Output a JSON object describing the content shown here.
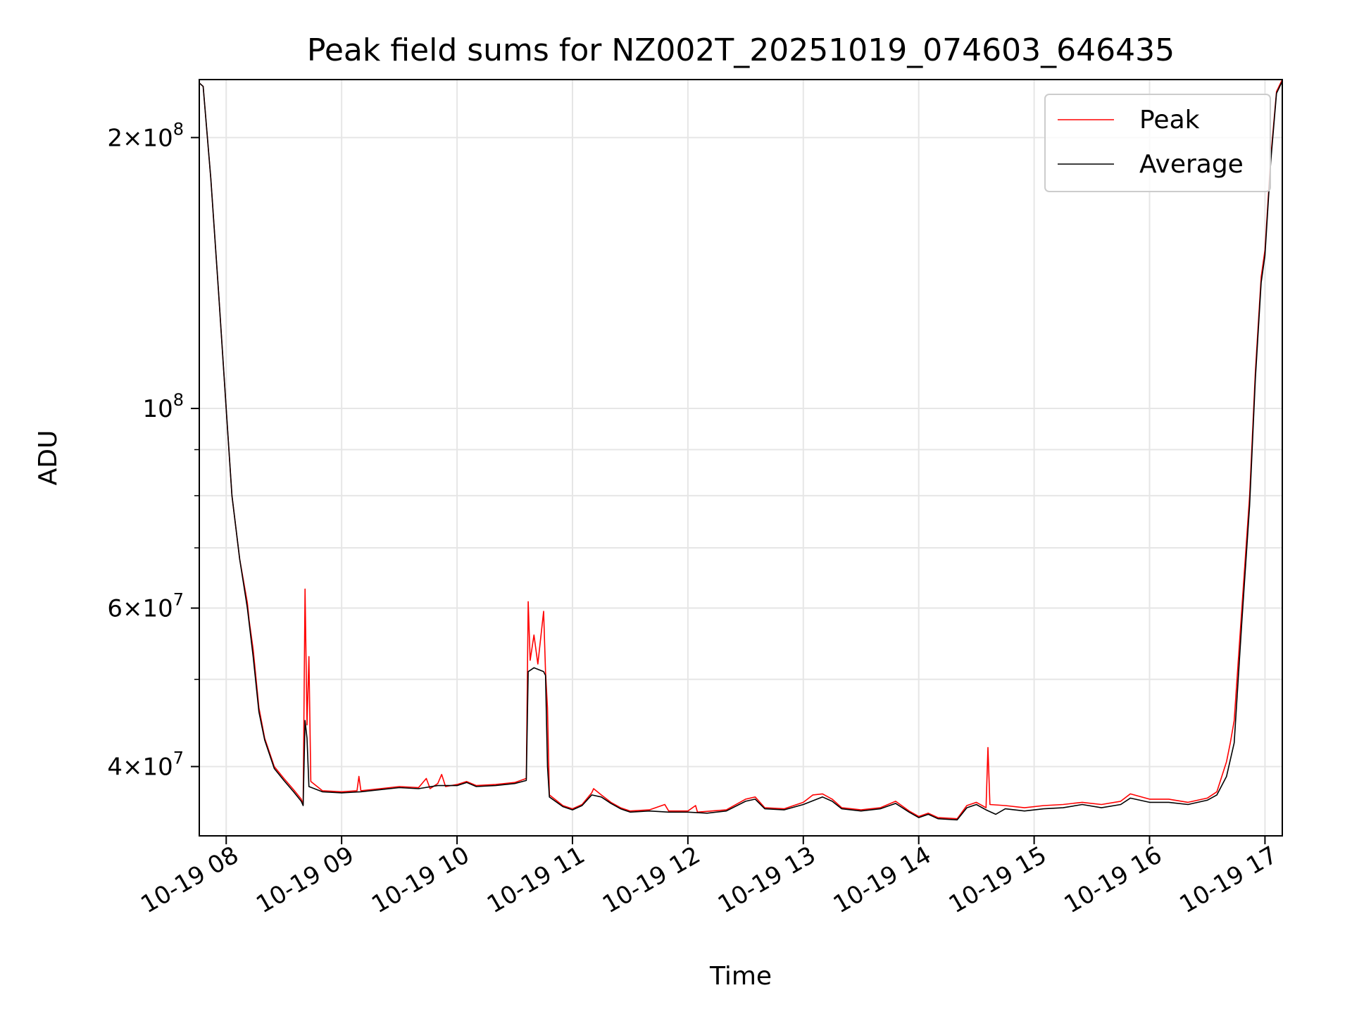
{
  "chart_data": {
    "type": "line",
    "title": "Peak field sums for NZ002T_20251019_074603_646435",
    "xlabel": "Time",
    "ylabel": "ADU",
    "yscale": "log",
    "xlim": [
      "2025-10-19 07:46",
      "2025-10-19 17:09"
    ],
    "ylim": [
      33500000,
      232000000
    ],
    "grid": true,
    "legend_position": "top-right",
    "x_ticks": [
      {
        "t": "2025-10-19 08:00",
        "label": "10-19 08"
      },
      {
        "t": "2025-10-19 09:00",
        "label": "10-19 09"
      },
      {
        "t": "2025-10-19 10:00",
        "label": "10-19 10"
      },
      {
        "t": "2025-10-19 11:00",
        "label": "10-19 11"
      },
      {
        "t": "2025-10-19 12:00",
        "label": "10-19 12"
      },
      {
        "t": "2025-10-19 13:00",
        "label": "10-19 13"
      },
      {
        "t": "2025-10-19 14:00",
        "label": "10-19 14"
      },
      {
        "t": "2025-10-19 15:00",
        "label": "10-19 15"
      },
      {
        "t": "2025-10-19 16:00",
        "label": "10-19 16"
      },
      {
        "t": "2025-10-19 17:00",
        "label": "10-19 17"
      }
    ],
    "y_major_ticks": [
      {
        "v": 40000000,
        "mant": "4",
        "exp": "7"
      },
      {
        "v": 60000000,
        "mant": "6",
        "exp": "7"
      },
      {
        "v": 100000000,
        "mant": "",
        "exp": "8"
      },
      {
        "v": 200000000,
        "mant": "2",
        "exp": "8"
      }
    ],
    "y_minor_ticks": [
      50000000,
      70000000,
      80000000,
      90000000
    ],
    "series": [
      {
        "name": "Peak",
        "color": "#ff0000",
        "points": [
          [
            "2025-10-19 07:46",
            230000000
          ],
          [
            "2025-10-19 07:48",
            228000000
          ],
          [
            "2025-10-19 07:52",
            180000000
          ],
          [
            "2025-10-19 07:56",
            135000000
          ],
          [
            "2025-10-19 08:00",
            100000000
          ],
          [
            "2025-10-19 08:03",
            80000000
          ],
          [
            "2025-10-19 08:07",
            68000000
          ],
          [
            "2025-10-19 08:11",
            60800000
          ],
          [
            "2025-10-19 08:12",
            58000000
          ],
          [
            "2025-10-19 08:14",
            54000000
          ],
          [
            "2025-10-19 08:17",
            46500000
          ],
          [
            "2025-10-19 08:20",
            43000000
          ],
          [
            "2025-10-19 08:25",
            40000000
          ],
          [
            "2025-10-19 08:30",
            38800000
          ],
          [
            "2025-10-19 08:35",
            37700000
          ],
          [
            "2025-10-19 08:39",
            36800000
          ],
          [
            "2025-10-19 08:40",
            36300000
          ],
          [
            "2025-10-19 08:41",
            63000000
          ],
          [
            "2025-10-19 08:42",
            44500000
          ],
          [
            "2025-10-19 08:43",
            53000000
          ],
          [
            "2025-10-19 08:44",
            38500000
          ],
          [
            "2025-10-19 08:50",
            37600000
          ],
          [
            "2025-10-19 09:00",
            37500000
          ],
          [
            "2025-10-19 09:08",
            37600000
          ],
          [
            "2025-10-19 09:09",
            39000000
          ],
          [
            "2025-10-19 09:10",
            37600000
          ],
          [
            "2025-10-19 09:20",
            37800000
          ],
          [
            "2025-10-19 09:30",
            38000000
          ],
          [
            "2025-10-19 09:40",
            37900000
          ],
          [
            "2025-10-19 09:44",
            38800000
          ],
          [
            "2025-10-19 09:46",
            37800000
          ],
          [
            "2025-10-19 09:50",
            38300000
          ],
          [
            "2025-10-19 09:52",
            39200000
          ],
          [
            "2025-10-19 09:54",
            38000000
          ],
          [
            "2025-10-19 10:00",
            38200000
          ],
          [
            "2025-10-19 10:05",
            38500000
          ],
          [
            "2025-10-19 10:10",
            38100000
          ],
          [
            "2025-10-19 10:20",
            38200000
          ],
          [
            "2025-10-19 10:30",
            38400000
          ],
          [
            "2025-10-19 10:36",
            38800000
          ],
          [
            "2025-10-19 10:37",
            61000000
          ],
          [
            "2025-10-19 10:38",
            52500000
          ],
          [
            "2025-10-19 10:40",
            56000000
          ],
          [
            "2025-10-19 10:42",
            52000000
          ],
          [
            "2025-10-19 10:45",
            59500000
          ],
          [
            "2025-10-19 10:46",
            51000000
          ],
          [
            "2025-10-19 10:47",
            46500000
          ],
          [
            "2025-10-19 10:48",
            37200000
          ],
          [
            "2025-10-19 10:55",
            36200000
          ],
          [
            "2025-10-19 11:00",
            35900000
          ],
          [
            "2025-10-19 11:05",
            36300000
          ],
          [
            "2025-10-19 11:10",
            37400000
          ],
          [
            "2025-10-19 11:11",
            37800000
          ],
          [
            "2025-10-19 11:15",
            37200000
          ],
          [
            "2025-10-19 11:20",
            36500000
          ],
          [
            "2025-10-19 11:25",
            36000000
          ],
          [
            "2025-10-19 11:30",
            35700000
          ],
          [
            "2025-10-19 11:40",
            35800000
          ],
          [
            "2025-10-19 11:48",
            36300000
          ],
          [
            "2025-10-19 11:50",
            35700000
          ],
          [
            "2025-10-19 12:00",
            35700000
          ],
          [
            "2025-10-19 12:04",
            36200000
          ],
          [
            "2025-10-19 12:05",
            35600000
          ],
          [
            "2025-10-19 12:20",
            35800000
          ],
          [
            "2025-10-19 12:30",
            36800000
          ],
          [
            "2025-10-19 12:35",
            37000000
          ],
          [
            "2025-10-19 12:40",
            36000000
          ],
          [
            "2025-10-19 12:50",
            35900000
          ],
          [
            "2025-10-19 13:00",
            36500000
          ],
          [
            "2025-10-19 13:05",
            37200000
          ],
          [
            "2025-10-19 13:10",
            37300000
          ],
          [
            "2025-10-19 13:15",
            36800000
          ],
          [
            "2025-10-19 13:20",
            36000000
          ],
          [
            "2025-10-19 13:30",
            35800000
          ],
          [
            "2025-10-19 13:40",
            36000000
          ],
          [
            "2025-10-19 13:48",
            36600000
          ],
          [
            "2025-10-19 13:55",
            35700000
          ],
          [
            "2025-10-19 14:00",
            35200000
          ],
          [
            "2025-10-19 14:05",
            35500000
          ],
          [
            "2025-10-19 14:10",
            35100000
          ],
          [
            "2025-10-19 14:20",
            35000000
          ],
          [
            "2025-10-19 14:25",
            36200000
          ],
          [
            "2025-10-19 14:30",
            36500000
          ],
          [
            "2025-10-19 14:35",
            36000000
          ],
          [
            "2025-10-19 14:36",
            42000000
          ],
          [
            "2025-10-19 14:37",
            36300000
          ],
          [
            "2025-10-19 14:45",
            36200000
          ],
          [
            "2025-10-19 14:55",
            36000000
          ],
          [
            "2025-10-19 15:05",
            36200000
          ],
          [
            "2025-10-19 15:15",
            36300000
          ],
          [
            "2025-10-19 15:25",
            36500000
          ],
          [
            "2025-10-19 15:35",
            36300000
          ],
          [
            "2025-10-19 15:45",
            36600000
          ],
          [
            "2025-10-19 15:50",
            37300000
          ],
          [
            "2025-10-19 16:00",
            36800000
          ],
          [
            "2025-10-19 16:10",
            36800000
          ],
          [
            "2025-10-19 16:20",
            36500000
          ],
          [
            "2025-10-19 16:30",
            36900000
          ],
          [
            "2025-10-19 16:35",
            37500000
          ],
          [
            "2025-10-19 16:40",
            40500000
          ],
          [
            "2025-10-19 16:42",
            42500000
          ],
          [
            "2025-10-19 16:44",
            45000000
          ],
          [
            "2025-10-19 16:48",
            60000000
          ],
          [
            "2025-10-19 16:52",
            80000000
          ],
          [
            "2025-10-19 16:55",
            110000000
          ],
          [
            "2025-10-19 16:58",
            140000000
          ],
          [
            "2025-10-19 17:00",
            150000000
          ],
          [
            "2025-10-19 17:03",
            190000000
          ],
          [
            "2025-10-19 17:06",
            225000000
          ],
          [
            "2025-10-19 17:09",
            232000000
          ]
        ]
      },
      {
        "name": "Average",
        "color": "#000000",
        "points": [
          [
            "2025-10-19 07:46",
            230000000
          ],
          [
            "2025-10-19 07:48",
            228000000
          ],
          [
            "2025-10-19 07:52",
            180000000
          ],
          [
            "2025-10-19 07:56",
            135000000
          ],
          [
            "2025-10-19 08:00",
            100000000
          ],
          [
            "2025-10-19 08:03",
            80000000
          ],
          [
            "2025-10-19 08:07",
            68000000
          ],
          [
            "2025-10-19 08:11",
            60000000
          ],
          [
            "2025-10-19 08:14",
            53000000
          ],
          [
            "2025-10-19 08:17",
            46000000
          ],
          [
            "2025-10-19 08:20",
            42800000
          ],
          [
            "2025-10-19 08:25",
            39800000
          ],
          [
            "2025-10-19 08:30",
            38600000
          ],
          [
            "2025-10-19 08:35",
            37500000
          ],
          [
            "2025-10-19 08:39",
            36600000
          ],
          [
            "2025-10-19 08:40",
            36200000
          ],
          [
            "2025-10-19 08:41",
            45000000
          ],
          [
            "2025-10-19 08:42",
            43000000
          ],
          [
            "2025-10-19 08:43",
            38000000
          ],
          [
            "2025-10-19 08:50",
            37500000
          ],
          [
            "2025-10-19 09:00",
            37400000
          ],
          [
            "2025-10-19 09:10",
            37500000
          ],
          [
            "2025-10-19 09:20",
            37700000
          ],
          [
            "2025-10-19 09:30",
            37900000
          ],
          [
            "2025-10-19 09:40",
            37800000
          ],
          [
            "2025-10-19 09:50",
            38100000
          ],
          [
            "2025-10-19 10:00",
            38100000
          ],
          [
            "2025-10-19 10:05",
            38400000
          ],
          [
            "2025-10-19 10:10",
            38000000
          ],
          [
            "2025-10-19 10:20",
            38100000
          ],
          [
            "2025-10-19 10:30",
            38300000
          ],
          [
            "2025-10-19 10:36",
            38600000
          ],
          [
            "2025-10-19 10:37",
            51000000
          ],
          [
            "2025-10-19 10:40",
            51500000
          ],
          [
            "2025-10-19 10:45",
            51000000
          ],
          [
            "2025-10-19 10:46",
            50500000
          ],
          [
            "2025-10-19 10:47",
            40000000
          ],
          [
            "2025-10-19 10:48",
            37000000
          ],
          [
            "2025-10-19 10:55",
            36100000
          ],
          [
            "2025-10-19 11:00",
            35800000
          ],
          [
            "2025-10-19 11:05",
            36200000
          ],
          [
            "2025-10-19 11:10",
            37200000
          ],
          [
            "2025-10-19 11:15",
            37000000
          ],
          [
            "2025-10-19 11:20",
            36400000
          ],
          [
            "2025-10-19 11:25",
            35900000
          ],
          [
            "2025-10-19 11:30",
            35600000
          ],
          [
            "2025-10-19 11:40",
            35700000
          ],
          [
            "2025-10-19 11:50",
            35600000
          ],
          [
            "2025-10-19 12:00",
            35600000
          ],
          [
            "2025-10-19 12:10",
            35500000
          ],
          [
            "2025-10-19 12:20",
            35700000
          ],
          [
            "2025-10-19 12:30",
            36600000
          ],
          [
            "2025-10-19 12:35",
            36800000
          ],
          [
            "2025-10-19 12:40",
            35900000
          ],
          [
            "2025-10-19 12:50",
            35800000
          ],
          [
            "2025-10-19 13:00",
            36300000
          ],
          [
            "2025-10-19 13:10",
            37000000
          ],
          [
            "2025-10-19 13:15",
            36600000
          ],
          [
            "2025-10-19 13:20",
            35900000
          ],
          [
            "2025-10-19 13:30",
            35700000
          ],
          [
            "2025-10-19 13:40",
            35900000
          ],
          [
            "2025-10-19 13:48",
            36400000
          ],
          [
            "2025-10-19 13:55",
            35600000
          ],
          [
            "2025-10-19 14:00",
            35100000
          ],
          [
            "2025-10-19 14:05",
            35400000
          ],
          [
            "2025-10-19 14:10",
            35000000
          ],
          [
            "2025-10-19 14:20",
            34900000
          ],
          [
            "2025-10-19 14:25",
            36000000
          ],
          [
            "2025-10-19 14:30",
            36300000
          ],
          [
            "2025-10-19 14:35",
            35800000
          ],
          [
            "2025-10-19 14:40",
            35400000
          ],
          [
            "2025-10-19 14:45",
            35900000
          ],
          [
            "2025-10-19 14:55",
            35700000
          ],
          [
            "2025-10-19 15:05",
            35900000
          ],
          [
            "2025-10-19 15:15",
            36000000
          ],
          [
            "2025-10-19 15:25",
            36300000
          ],
          [
            "2025-10-19 15:35",
            36000000
          ],
          [
            "2025-10-19 15:45",
            36300000
          ],
          [
            "2025-10-19 15:50",
            36900000
          ],
          [
            "2025-10-19 16:00",
            36500000
          ],
          [
            "2025-10-19 16:10",
            36500000
          ],
          [
            "2025-10-19 16:20",
            36300000
          ],
          [
            "2025-10-19 16:30",
            36700000
          ],
          [
            "2025-10-19 16:35",
            37200000
          ],
          [
            "2025-10-19 16:40",
            39000000
          ],
          [
            "2025-10-19 16:44",
            42500000
          ],
          [
            "2025-10-19 16:48",
            58000000
          ],
          [
            "2025-10-19 16:52",
            78000000
          ],
          [
            "2025-10-19 16:55",
            108000000
          ],
          [
            "2025-10-19 16:58",
            138000000
          ],
          [
            "2025-10-19 17:00",
            148000000
          ],
          [
            "2025-10-19 17:03",
            188000000
          ],
          [
            "2025-10-19 17:06",
            224000000
          ],
          [
            "2025-10-19 17:09",
            231000000
          ]
        ]
      }
    ]
  }
}
